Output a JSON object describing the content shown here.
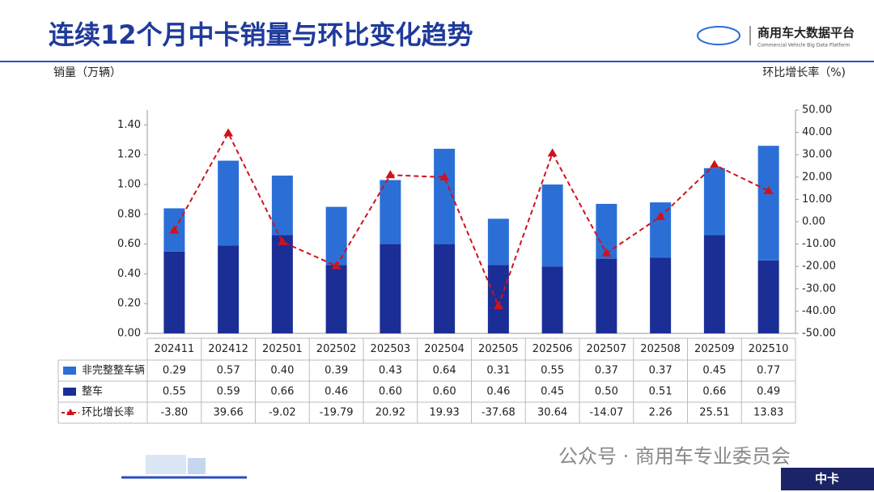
{
  "chart_data": {
    "type": "bar",
    "title": "连续12个月中卡销量与环比变化趋势",
    "ylabel": "销量（万辆）",
    "y2label": "环比增长率（%)",
    "categories": [
      "202411",
      "202412",
      "202501",
      "202502",
      "202503",
      "202504",
      "202505",
      "202506",
      "202507",
      "202508",
      "202509",
      "202510"
    ],
    "series": [
      {
        "name": "非完整整车辆",
        "color": "#2b6fd6",
        "values": [
          0.29,
          0.57,
          0.4,
          0.39,
          0.43,
          0.64,
          0.31,
          0.55,
          0.37,
          0.37,
          0.45,
          0.77
        ],
        "value_labels": [
          "0.29",
          "0.57",
          "0.40",
          "0.39",
          "0.43",
          "0.64",
          "0.31",
          "0.55",
          "0.37",
          "0.37",
          "0.45",
          "0.77"
        ]
      },
      {
        "name": "整车",
        "color": "#1b2e96",
        "values": [
          0.55,
          0.59,
          0.66,
          0.46,
          0.6,
          0.6,
          0.46,
          0.45,
          0.5,
          0.51,
          0.66,
          0.49
        ],
        "value_labels": [
          "0.55",
          "0.59",
          "0.66",
          "0.46",
          "0.60",
          "0.60",
          "0.46",
          "0.45",
          "0.50",
          "0.51",
          "0.66",
          "0.49"
        ]
      },
      {
        "name": "环比增长率",
        "type": "line",
        "axis": "y2",
        "color": "#d0121b",
        "values": [
          -3.8,
          39.66,
          -9.02,
          -19.79,
          20.92,
          19.93,
          -37.68,
          30.64,
          -14.07,
          2.26,
          25.51,
          13.83
        ],
        "value_labels": [
          "-3.80",
          "39.66",
          "-9.02",
          "-19.79",
          "20.92",
          "19.93",
          "-37.68",
          "30.64",
          "-14.07",
          "2.26",
          "25.51",
          "13.83"
        ]
      }
    ],
    "ylim": [
      0,
      1.5
    ],
    "yticks": [
      {
        "value": 0,
        "label": "0.00"
      },
      {
        "value": 0.2,
        "label": "0.20"
      },
      {
        "value": 0.4,
        "label": "0.40"
      },
      {
        "value": 0.6,
        "label": "0.60"
      },
      {
        "value": 0.8,
        "label": "0.80"
      },
      {
        "value": 1.0,
        "label": "1.00"
      },
      {
        "value": 1.2,
        "label": "1.20"
      },
      {
        "value": 1.4,
        "label": "1.40"
      }
    ],
    "y2lim": [
      -50,
      50
    ],
    "y2ticks": [
      {
        "value": -50,
        "label": "-50.00"
      },
      {
        "value": -40,
        "label": "-40.00"
      },
      {
        "value": -30,
        "label": "-30.00"
      },
      {
        "value": -20,
        "label": "-20.00"
      },
      {
        "value": -10,
        "label": "-10.00"
      },
      {
        "value": 0,
        "label": "0.00"
      },
      {
        "value": 10,
        "label": "10.00"
      },
      {
        "value": 20,
        "label": "20.00"
      },
      {
        "value": 30,
        "label": "30.00"
      },
      {
        "value": 40,
        "label": "40.00"
      },
      {
        "value": 50,
        "label": "50.00"
      }
    ],
    "grid": false
  },
  "header": {
    "logo_name": "商用车大数据平台",
    "logo_subtitle": "Commercial Vehicle Big Data Platform"
  },
  "footer": {
    "wechat": "公众号 · 商用车专业委员会",
    "tag": "中卡"
  }
}
